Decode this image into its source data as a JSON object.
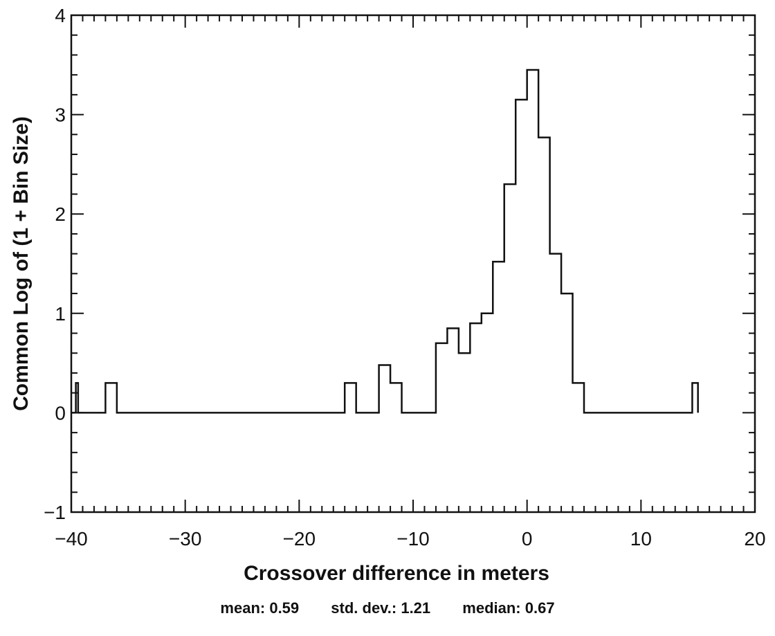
{
  "chart_data": {
    "type": "line",
    "subtype": "step-histogram",
    "xlabel": "Crossover difference in meters",
    "ylabel": "Common Log of (1 + Bin Size)",
    "xlim": [
      -40,
      20
    ],
    "ylim": [
      -1,
      4
    ],
    "x_ticks": [
      -40,
      -30,
      -20,
      -10,
      0,
      10,
      20
    ],
    "x_tick_labels": [
      "−40",
      "−30",
      "−20",
      "−10",
      "0",
      "10",
      "20"
    ],
    "y_ticks": [
      -1,
      0,
      1,
      2,
      3,
      4
    ],
    "y_tick_labels": [
      "−1",
      "0",
      "1",
      "2",
      "3",
      "4"
    ],
    "grid": false,
    "step_outline": {
      "x": [
        -40,
        -39.6,
        -39.6,
        -39.4,
        -39.4,
        -37,
        -37,
        -36,
        -36,
        -16,
        -16,
        -15,
        -15,
        -13,
        -13,
        -12,
        -12,
        -11,
        -11,
        -8,
        -8,
        -7,
        -7,
        -6,
        -6,
        -5,
        -5,
        -4,
        -4,
        -3,
        -3,
        -2,
        -2,
        -1,
        -1,
        0,
        0,
        1,
        1,
        2,
        2,
        3,
        3,
        4,
        4,
        5,
        5,
        14.5,
        14.5,
        15,
        15
      ],
      "y": [
        0,
        0,
        0.3,
        0.3,
        0,
        0,
        0.3,
        0.3,
        0,
        0,
        0.3,
        0.3,
        0,
        0,
        0.48,
        0.48,
        0.3,
        0.3,
        0,
        0,
        0.7,
        0.7,
        0.85,
        0.85,
        0.6,
        0.6,
        0.9,
        0.9,
        1.0,
        1.0,
        1.52,
        1.52,
        2.3,
        2.3,
        3.15,
        3.15,
        3.45,
        3.45,
        2.77,
        2.77,
        1.6,
        1.6,
        1.2,
        1.2,
        0.3,
        0.3,
        0,
        0,
        0.3,
        0.3,
        0
      ]
    }
  },
  "stats": {
    "mean": "mean: 0.59",
    "std_dev": "std. dev.: 1.21",
    "median": "median: 0.67"
  }
}
